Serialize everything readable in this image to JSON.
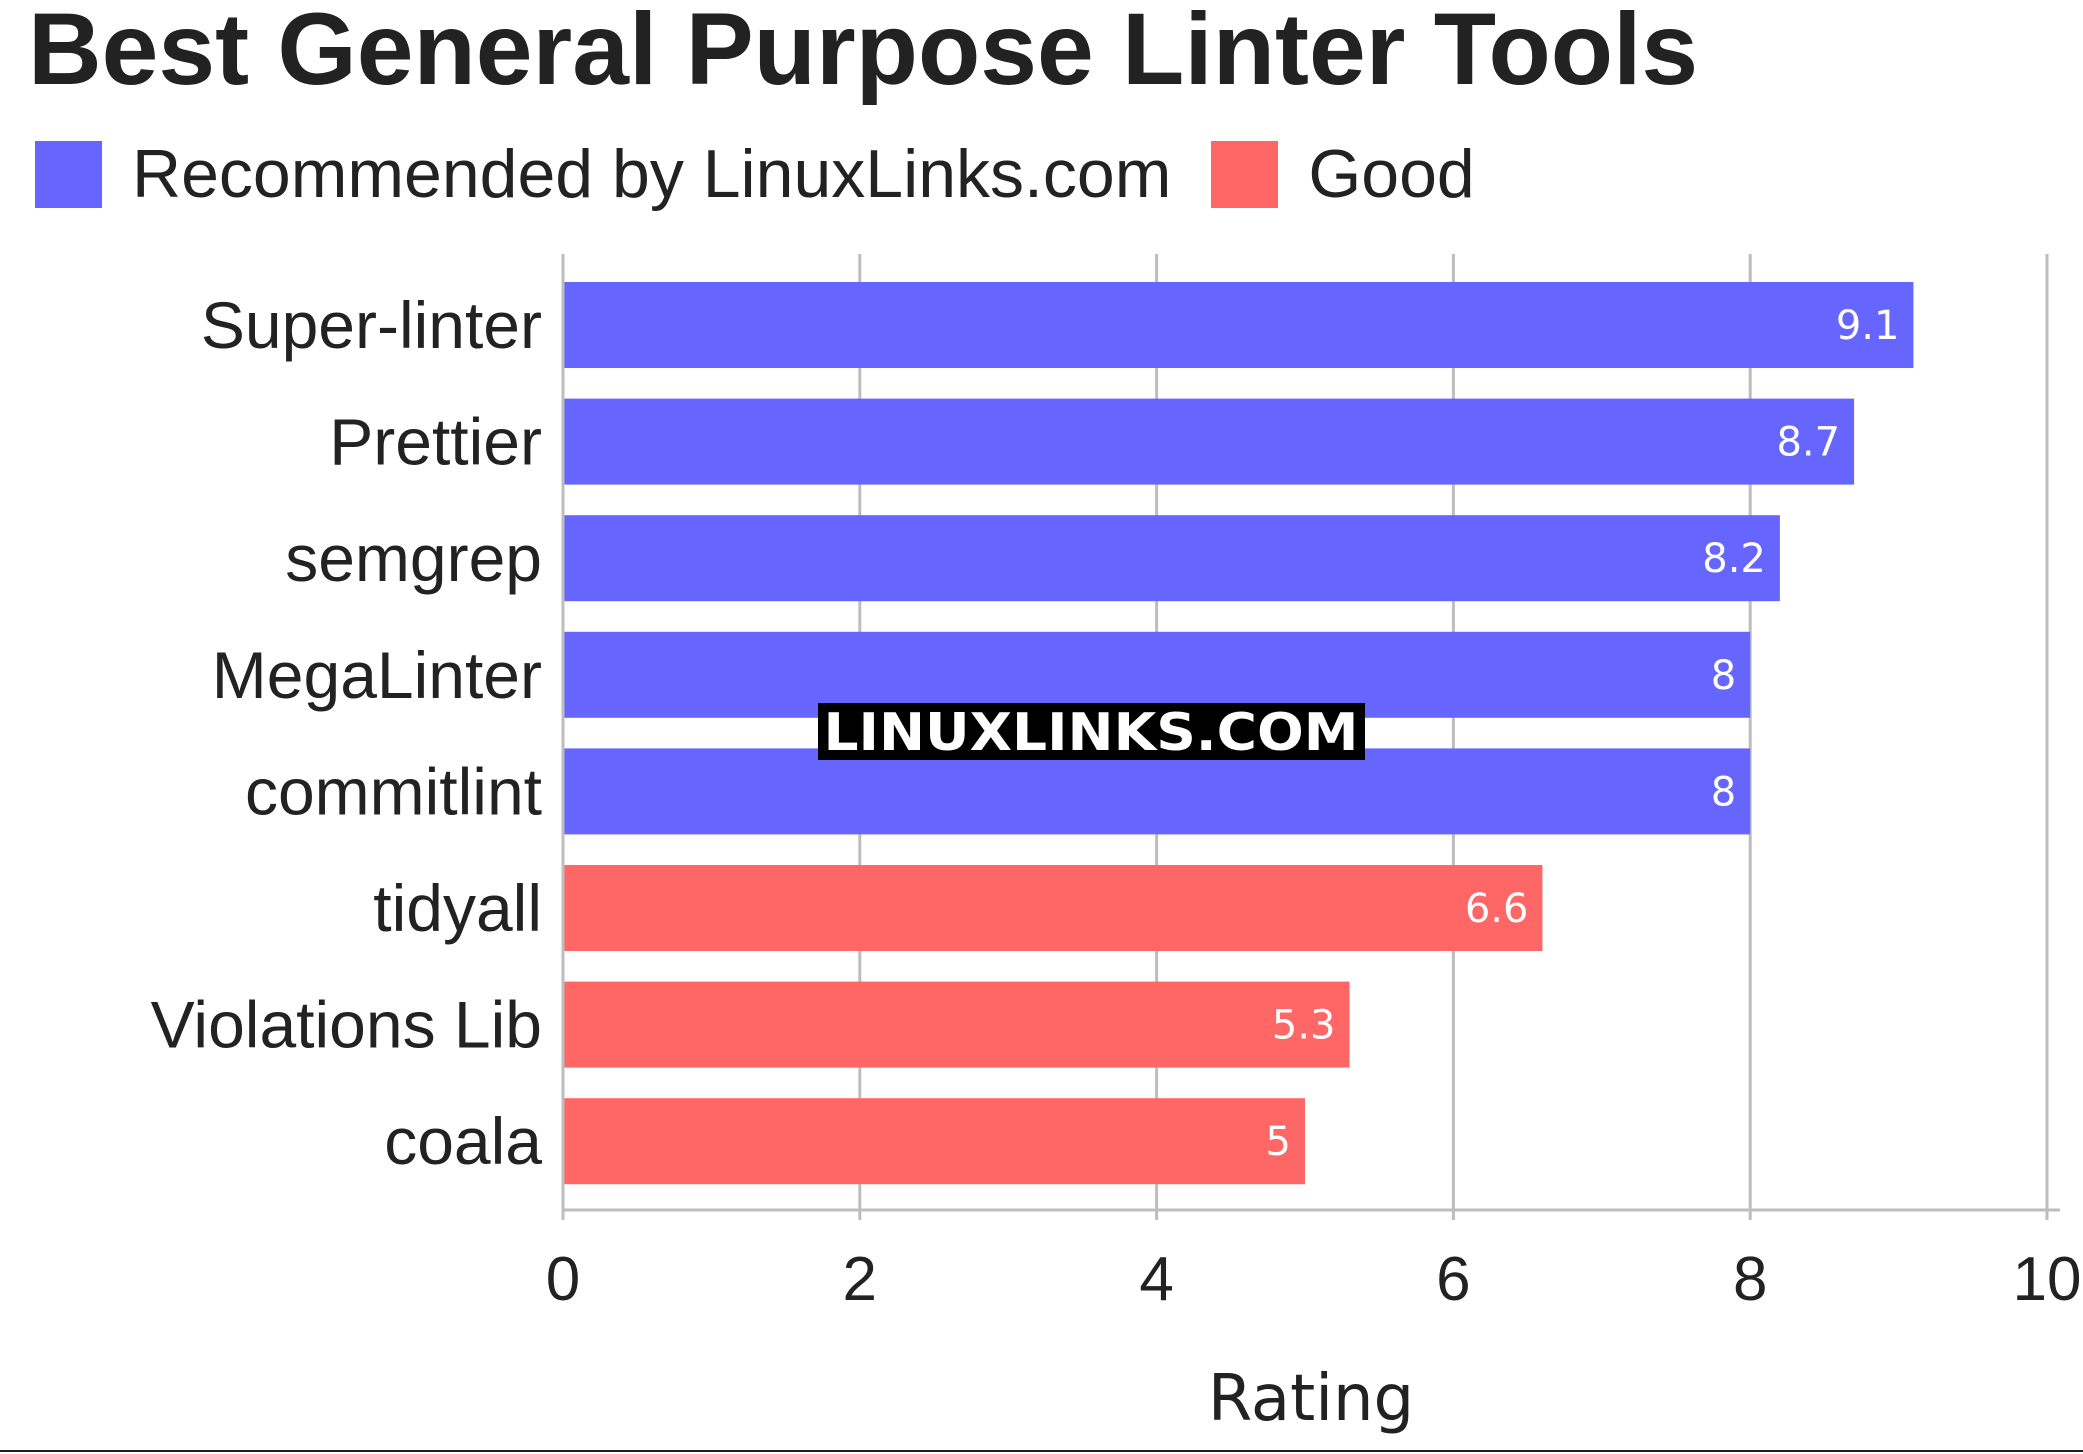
{
  "chart_data": {
    "type": "bar",
    "orientation": "horizontal",
    "title": "Best General Purpose Linter Tools",
    "xlabel": "Rating",
    "ylabel": "",
    "xlim": [
      0,
      10
    ],
    "xticks": [
      "0",
      "2",
      "4",
      "6",
      "8",
      "10"
    ],
    "grid": true,
    "legend_position": "top-left",
    "categories": [
      "Super-linter",
      "Prettier",
      "semgrep",
      "MegaLinter",
      "commitlint",
      "tidyall",
      "Violations Lib",
      "coala"
    ],
    "values": [
      9.1,
      8.7,
      8.2,
      8,
      8,
      6.6,
      5.3,
      5
    ],
    "value_labels": [
      "9.1",
      "8.7",
      "8.2",
      "8",
      "8",
      "6.6",
      "5.3",
      "5"
    ],
    "groups": [
      "recommended",
      "recommended",
      "recommended",
      "recommended",
      "recommended",
      "good",
      "good",
      "good"
    ],
    "series": [
      {
        "key": "recommended",
        "name": "Recommended by LinuxLinks.com",
        "color": "#6666ff"
      },
      {
        "key": "good",
        "name": "Good",
        "color": "#ff6666"
      }
    ],
    "watermark": "LINUXLINKS.COM"
  }
}
